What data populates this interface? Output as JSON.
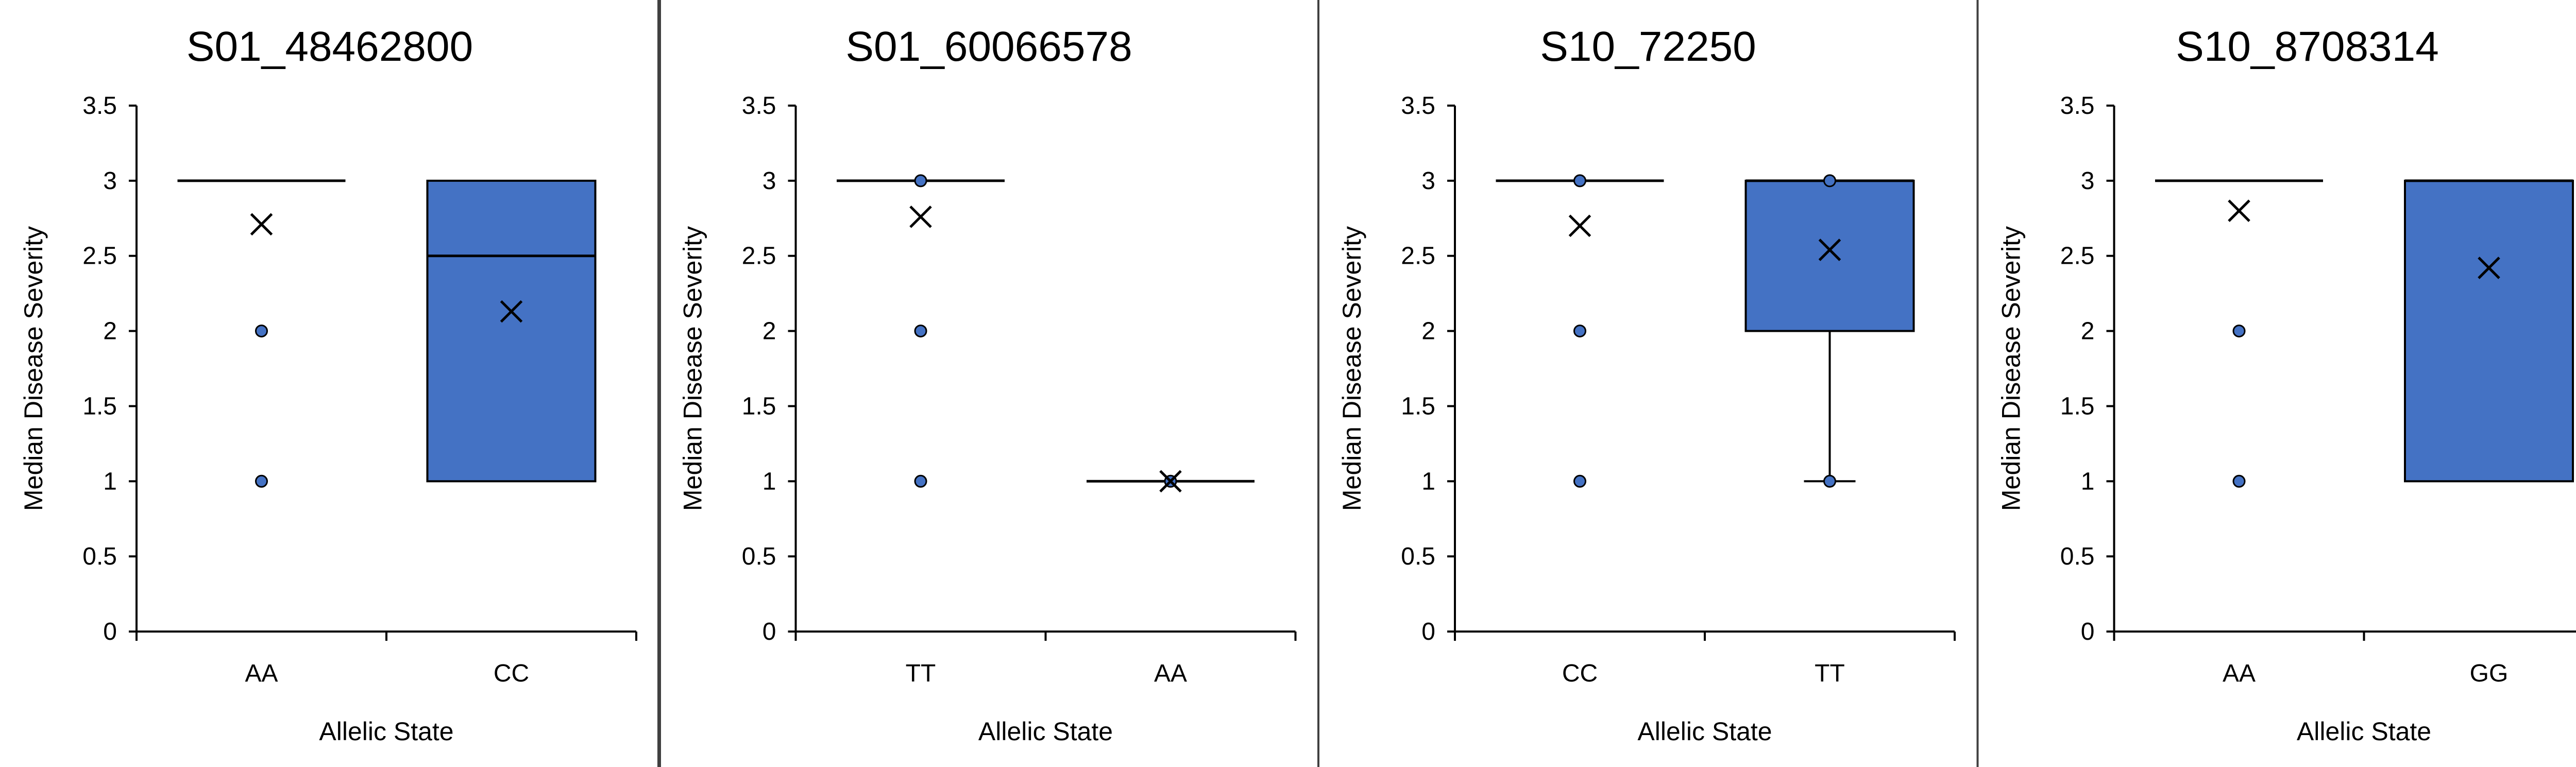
{
  "chart_data": [
    {
      "type": "box",
      "title": "S01_48462800",
      "xlabel": "Allelic State",
      "ylabel": "Median Disease Severity",
      "ylim": [
        0,
        3.5
      ],
      "yticks": [
        "0",
        "0.5",
        "1",
        "1.5",
        "2",
        "2.5",
        "3",
        "3.5"
      ],
      "grid": false,
      "box_color": "#4472C4",
      "categories": [
        {
          "label": "AA",
          "q1": 3,
          "median": 3,
          "q3": 3,
          "whisker_low": 3,
          "whisker_high": 3,
          "mean": 2.71,
          "outliers": [
            2,
            1
          ]
        },
        {
          "label": "CC",
          "q1": 1,
          "median": 2.5,
          "q3": 3,
          "whisker_low": 1,
          "whisker_high": 3,
          "mean": 2.13,
          "outliers": []
        }
      ]
    },
    {
      "type": "box",
      "title": "S01_60066578",
      "xlabel": "Allelic State",
      "ylabel": "Median Disease Severity",
      "ylim": [
        0,
        3.5
      ],
      "yticks": [
        "0",
        "0.5",
        "1",
        "1.5",
        "2",
        "2.5",
        "3",
        "3.5"
      ],
      "grid": false,
      "box_color": "#4472C4",
      "categories": [
        {
          "label": "TT",
          "q1": 3,
          "median": 3,
          "q3": 3,
          "whisker_low": 3,
          "whisker_high": 3,
          "mean": 2.76,
          "outliers": [
            3,
            2,
            1
          ]
        },
        {
          "label": "AA",
          "q1": 1,
          "median": 1,
          "q3": 1,
          "whisker_low": 1,
          "whisker_high": 1,
          "mean": 1,
          "outliers": [
            1
          ]
        }
      ]
    },
    {
      "type": "box",
      "title": "S10_72250",
      "xlabel": "Allelic State",
      "ylabel": "Median Disease Severity",
      "ylim": [
        0,
        3.5
      ],
      "yticks": [
        "0",
        "0.5",
        "1",
        "1.5",
        "2",
        "2.5",
        "3",
        "3.5"
      ],
      "grid": false,
      "box_color": "#4472C4",
      "categories": [
        {
          "label": "CC",
          "q1": 3,
          "median": 3,
          "q3": 3,
          "whisker_low": 3,
          "whisker_high": 3,
          "mean": 2.7,
          "outliers": [
            3,
            2,
            1
          ]
        },
        {
          "label": "TT",
          "q1": 2,
          "median": 3,
          "q3": 3,
          "whisker_low": 1,
          "whisker_high": 3,
          "mean": 2.54,
          "outliers": [
            3,
            1
          ]
        }
      ]
    },
    {
      "type": "box",
      "title": "S10_8708314",
      "xlabel": "Allelic State",
      "ylabel": "Median Disease Severity",
      "ylim": [
        0,
        3.5
      ],
      "yticks": [
        "0",
        "0.5",
        "1",
        "1.5",
        "2",
        "2.5",
        "3",
        "3.5"
      ],
      "grid": false,
      "box_color": "#4472C4",
      "categories": [
        {
          "label": "AA",
          "q1": 3,
          "median": 3,
          "q3": 3,
          "whisker_low": 3,
          "whisker_high": 3,
          "mean": 2.8,
          "outliers": [
            2,
            1
          ]
        },
        {
          "label": "GG",
          "q1": 1,
          "median": 3,
          "q3": 3,
          "whisker_low": 1,
          "whisker_high": 3,
          "mean": 2.42,
          "outliers": []
        }
      ]
    }
  ]
}
